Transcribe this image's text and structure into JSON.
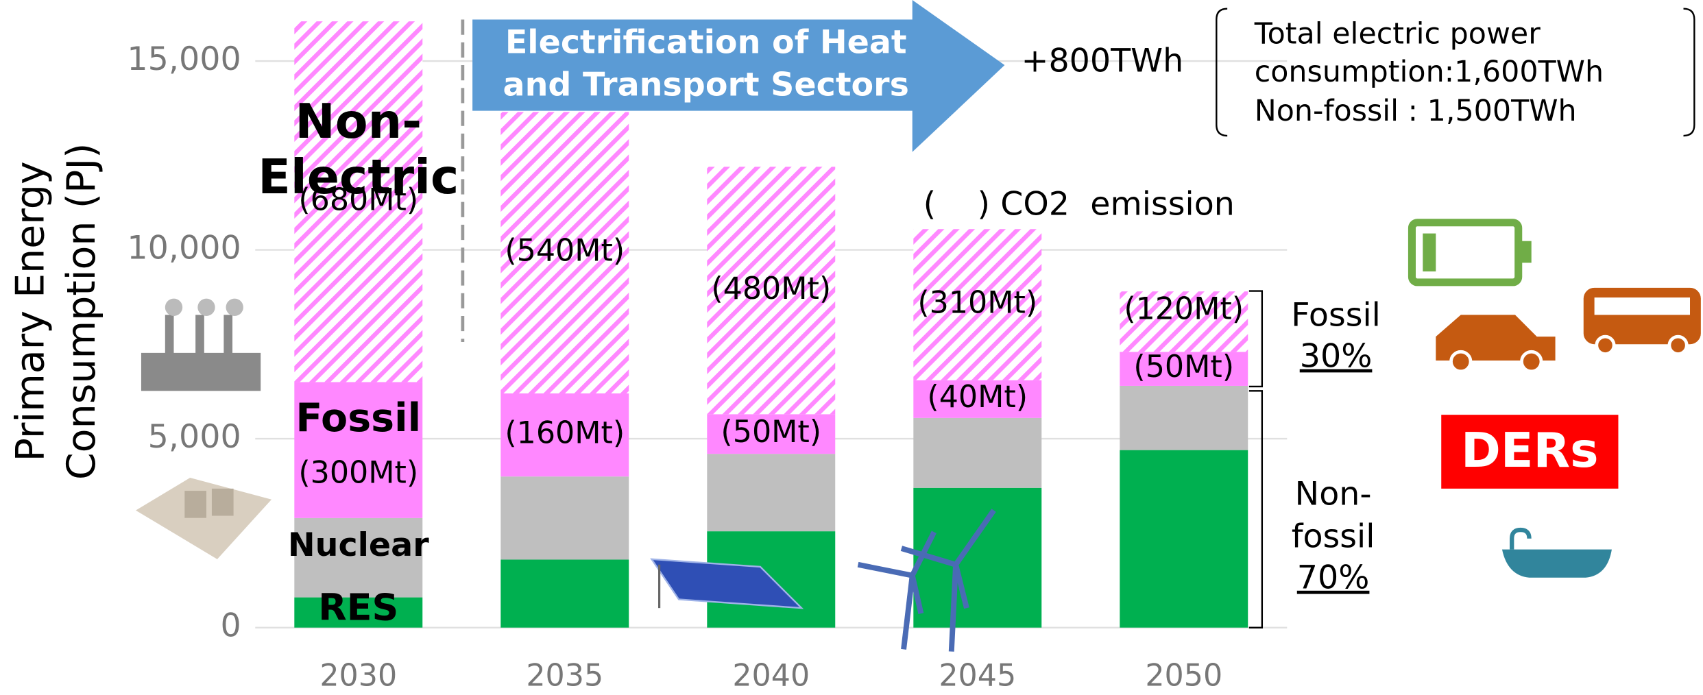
{
  "chart_data": {
    "type": "stacked_bar",
    "y_axis_label": "Primary Energy Consumption (PJ)",
    "categories": [
      "2030",
      "2035",
      "2040",
      "2045",
      "2050"
    ],
    "ylim": [
      0,
      16500
    ],
    "yticks": [
      0,
      {
        "value": 5000,
        "label": "5,000"
      },
      {
        "value": 10000,
        "label": "10,000"
      },
      {
        "value": 15000,
        "label": "15,000"
      }
    ],
    "grid": true,
    "series": [
      {
        "name": "RES",
        "color": "#00b050",
        "values": [
          800,
          1800,
          2550,
          3700,
          4700
        ]
      },
      {
        "name": "Nuclear",
        "color": "#bfbfbf",
        "values": [
          2100,
          2200,
          2050,
          1850,
          1700
        ]
      },
      {
        "name": "Fossil",
        "color": "#ff88ff",
        "values": [
          3600,
          2200,
          1050,
          1000,
          900
        ],
        "value_labels": [
          "(300Mt)",
          "(160Mt)",
          "(50Mt)",
          "(40Mt)",
          "(50Mt)"
        ]
      },
      {
        "name": "Non-Electric",
        "color": "#ff88ff",
        "hatched": true,
        "values": [
          9550,
          7450,
          6550,
          4000,
          1600
        ],
        "value_labels": [
          "(680Mt)",
          "(540Mt)",
          "(480Mt)",
          "(310Mt)",
          "(120Mt)"
        ]
      }
    ],
    "annotations": {
      "arrow": "Electrification of Heat and Transport Sectors",
      "increase": "+800TWh",
      "box_line1": "Total electric power consumption:1,600TWh",
      "box_line2": "Non-fossil : 1,500TWh",
      "co2_legend": "(    ) CO2  emission",
      "fossil_share_label": "Fossil",
      "fossil_share": "30%",
      "nonfossil_share_label": "Non-fossil",
      "nonfossil_share": "70%",
      "ders": "DERs"
    }
  }
}
